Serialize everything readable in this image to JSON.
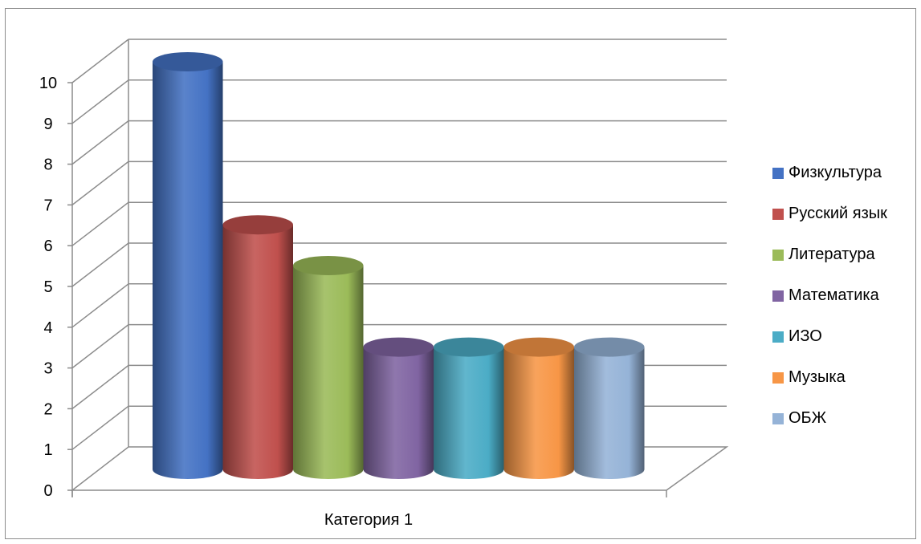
{
  "chart_data": {
    "type": "bar",
    "style": "3d-cylinder",
    "categories": [
      "Категория 1"
    ],
    "series": [
      {
        "name": "Физкультура",
        "values": [
          10
        ],
        "color": "#4472C4"
      },
      {
        "name": "Русский язык",
        "values": [
          6
        ],
        "color": "#C0504D"
      },
      {
        "name": "Литература",
        "values": [
          5
        ],
        "color": "#9BBB59"
      },
      {
        "name": "Математика",
        "values": [
          3
        ],
        "color": "#8064A2"
      },
      {
        "name": "ИЗО",
        "values": [
          3
        ],
        "color": "#4BACC6"
      },
      {
        "name": "Музыка",
        "values": [
          3
        ],
        "color": "#F79646"
      },
      {
        "name": "ОБЖ",
        "values": [
          3
        ],
        "color": "#95B3D7"
      }
    ],
    "yticks": [
      "0",
      "1",
      "2",
      "3",
      "4",
      "5",
      "6",
      "7",
      "8",
      "9",
      "10"
    ],
    "ylim": [
      0,
      11
    ],
    "grid": true,
    "legend_position": "right"
  }
}
